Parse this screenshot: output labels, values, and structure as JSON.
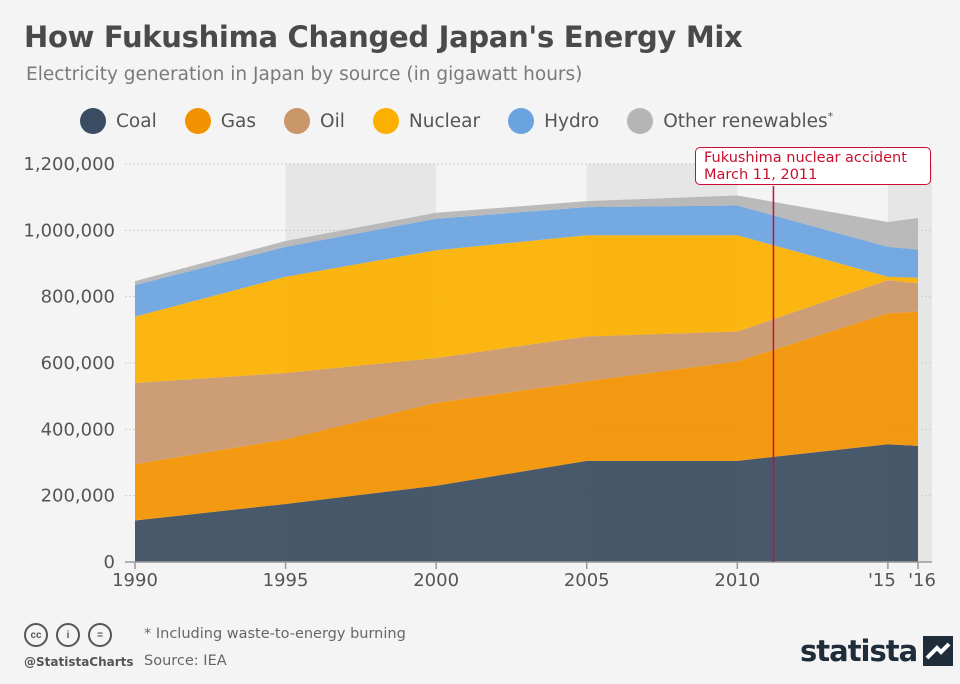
{
  "header": {
    "title": "How Fukushima Changed Japan's Energy Mix",
    "subtitle": "Electricity generation in Japan by source (in gigawatt hours)"
  },
  "legend": [
    {
      "label": "Coal",
      "color": "#3a4c61"
    },
    {
      "label": "Gas",
      "color": "#f39200"
    },
    {
      "label": "Oil",
      "color": "#c9976a"
    },
    {
      "label": "Nuclear",
      "color": "#fbb000"
    },
    {
      "label": "Hydro",
      "color": "#6aa3df"
    },
    {
      "label": "Other renewables",
      "color": "#b5b5b5"
    }
  ],
  "annotation": {
    "title": "Fukushima nuclear accident",
    "date": "March 11, 2011"
  },
  "footer": {
    "note": "* Including waste-to-energy burning",
    "source": "Source: IEA",
    "handle": "@StatistaCharts",
    "brand": "statista",
    "cc_icons": [
      "cc-icon",
      "by-icon",
      "nd-icon"
    ]
  },
  "chart_data": {
    "type": "area",
    "stacked": true,
    "x": [
      1990,
      1995,
      2000,
      2005,
      2010,
      2015,
      2016
    ],
    "x_tick_labels": [
      "1990",
      "1995",
      "2000",
      "2005",
      "2010",
      "'15",
      "'16"
    ],
    "y_tick_labels": [
      "0",
      "200,000",
      "400,000",
      "600,000",
      "800,000",
      "1,000,000",
      "1,200,000"
    ],
    "ylim": [
      0,
      1200000
    ],
    "event_x": 2011.2,
    "shaded_bands": [
      [
        1995,
        2000
      ],
      [
        2005,
        2010
      ],
      [
        2015,
        2016
      ]
    ],
    "series": [
      {
        "name": "Coal",
        "color": "#3a4c61",
        "values": [
          125000,
          175000,
          230000,
          305000,
          305000,
          355000,
          350000
        ]
      },
      {
        "name": "Gas",
        "color": "#f39200",
        "values": [
          170000,
          195000,
          250000,
          240000,
          300000,
          395000,
          405000
        ]
      },
      {
        "name": "Oil",
        "color": "#c9976a",
        "values": [
          245000,
          200000,
          135000,
          135000,
          90000,
          100000,
          85000
        ]
      },
      {
        "name": "Nuclear",
        "color": "#fbb000",
        "values": [
          200000,
          290000,
          325000,
          305000,
          290000,
          10000,
          17000
        ]
      },
      {
        "name": "Hydro",
        "color": "#6aa3df",
        "values": [
          95000,
          90000,
          95000,
          85000,
          90000,
          90000,
          85000
        ]
      },
      {
        "name": "Other renewables",
        "color": "#b5b5b5",
        "values": [
          12000,
          18000,
          18000,
          18000,
          30000,
          75000,
          95000
        ]
      }
    ]
  }
}
